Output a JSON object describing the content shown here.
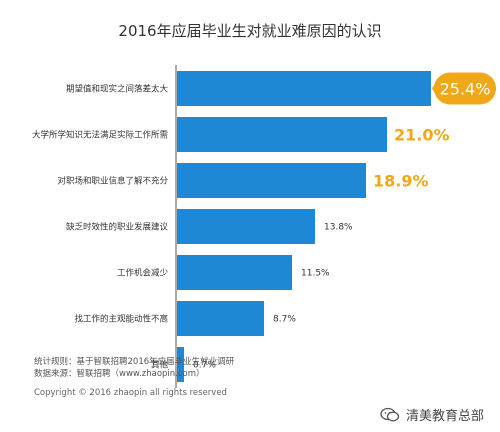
{
  "chart_data": {
    "type": "bar",
    "orientation": "horizontal",
    "title": "2016年应届毕业生对就业难原因的认识",
    "categories": [
      "期望值和现实之间落差太大",
      "大学所学知识无法满足实际工作所需",
      "对职场和职业信息了解不充分",
      "缺乏时效性的职业发展建议",
      "工作机会减少",
      "找工作的主观能动性不高",
      "其他"
    ],
    "values": [
      25.4,
      21.0,
      18.9,
      13.8,
      11.5,
      8.7,
      0.7
    ],
    "value_labels": [
      "25.4%",
      "21.0%",
      "18.9%",
      "13.8%",
      "11.5%",
      "8.7%",
      "0.7%"
    ],
    "highlighted_count": 3,
    "xlim": [
      0,
      25.4
    ],
    "grid": false,
    "colors": {
      "bar": "#1E88D6",
      "highlight_text": "#F0A818",
      "normal_text": "#333333",
      "badge": "#F0A818",
      "baseline": "#555555"
    }
  },
  "footer": {
    "note_line1": "统计规则：基于智联招聘2016年应届毕业生就业调研",
    "note_line2": "数据来源：智联招聘（www.zhaopin.com）",
    "copyright": "Copyright © 2016 zhaopin all rights reserved"
  },
  "watermark": {
    "text": "清美教育总部",
    "icon": "wechat-icon"
  }
}
